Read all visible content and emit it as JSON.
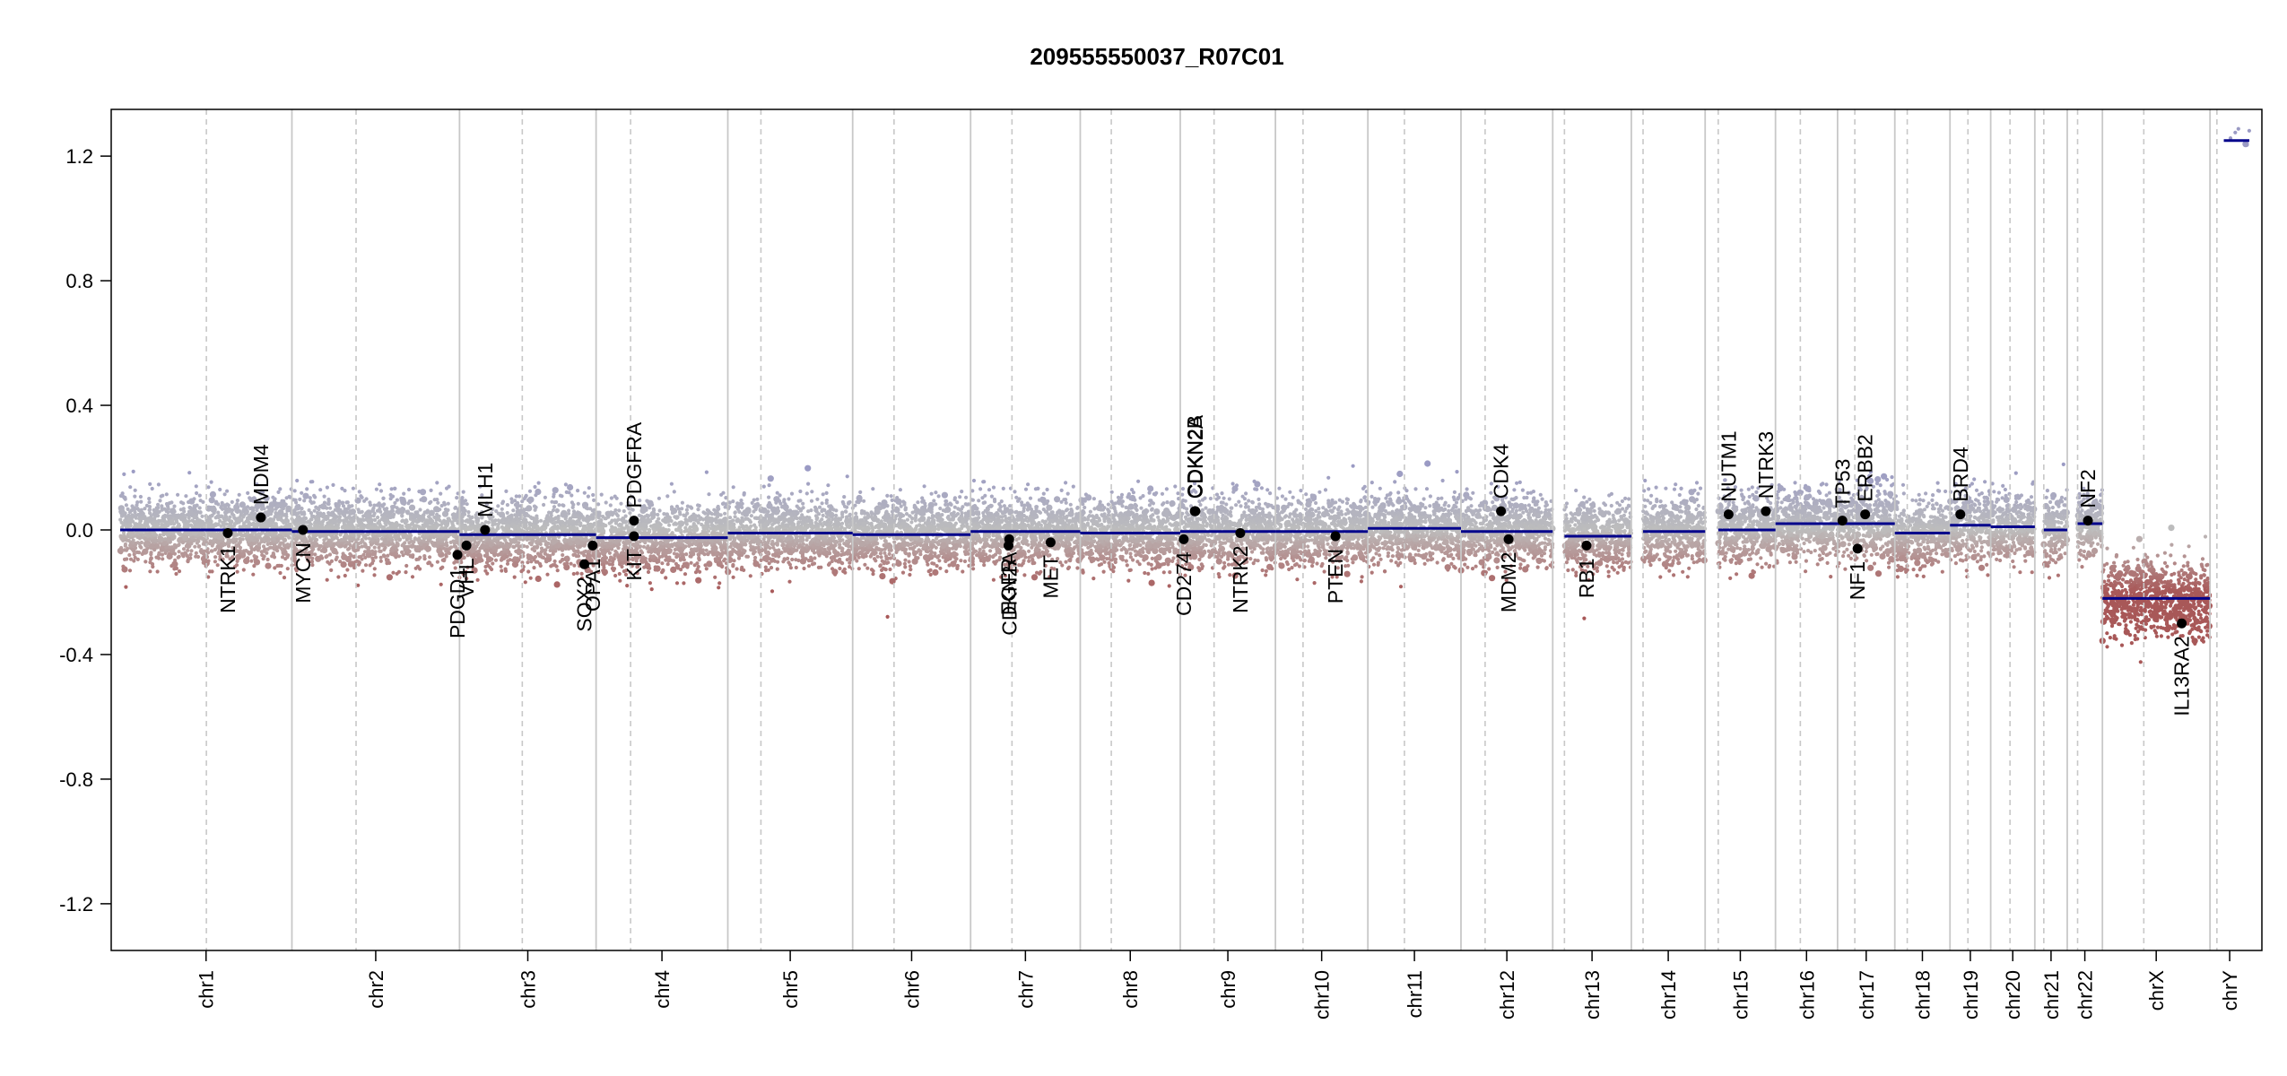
{
  "chart_data": {
    "type": "scatter",
    "title": "209555550037_R07C01",
    "xlabel": "",
    "ylabel": "",
    "ylim": [
      -1.35,
      1.35
    ],
    "yticks": [
      "1.2",
      "0.8",
      "0.4",
      "0.0",
      "-0.4",
      "-0.8",
      "-1.2"
    ],
    "grid": false,
    "colors": {
      "positive": "#9a9ac4",
      "negative": "#a85858",
      "neutral": "#bdbdbd",
      "segment": "#00008b",
      "gene_point": "#000000",
      "boundary": "#c8c8c8",
      "centromere": "#c8c8c8"
    },
    "chromosomes": [
      {
        "name": "chr1",
        "length": 249,
        "centromere": 125,
        "segments": [
          {
            "from": 0,
            "to": 249,
            "value": 0.0
          }
        ]
      },
      {
        "name": "chr2",
        "length": 243,
        "centromere": 93,
        "segments": [
          {
            "from": 0,
            "to": 243,
            "value": -0.005
          }
        ]
      },
      {
        "name": "chr3",
        "length": 198,
        "centromere": 91,
        "segments": [
          {
            "from": 0,
            "to": 198,
            "value": -0.015
          }
        ]
      },
      {
        "name": "chr4",
        "length": 191,
        "centromere": 50,
        "segments": [
          {
            "from": 0,
            "to": 191,
            "value": -0.025
          }
        ]
      },
      {
        "name": "chr5",
        "length": 181,
        "centromere": 48,
        "segments": [
          {
            "from": 0,
            "to": 181,
            "value": -0.01
          }
        ]
      },
      {
        "name": "chr6",
        "length": 171,
        "centromere": 60,
        "segments": [
          {
            "from": 0,
            "to": 171,
            "value": -0.015
          }
        ]
      },
      {
        "name": "chr7",
        "length": 159,
        "centromere": 60,
        "segments": [
          {
            "from": 0,
            "to": 159,
            "value": -0.005
          }
        ]
      },
      {
        "name": "chr8",
        "length": 145,
        "centromere": 45,
        "segments": [
          {
            "from": 0,
            "to": 145,
            "value": -0.01
          }
        ]
      },
      {
        "name": "chr9",
        "length": 138,
        "centromere": 49,
        "segments": [
          {
            "from": 0,
            "to": 138,
            "value": -0.005
          }
        ]
      },
      {
        "name": "chr10",
        "length": 134,
        "centromere": 40,
        "segments": [
          {
            "from": 0,
            "to": 134,
            "value": -0.005
          }
        ]
      },
      {
        "name": "chr11",
        "length": 135,
        "centromere": 53,
        "segments": [
          {
            "from": 0,
            "to": 135,
            "value": 0.005
          }
        ]
      },
      {
        "name": "chr12",
        "length": 133,
        "centromere": 35,
        "segments": [
          {
            "from": 0,
            "to": 133,
            "value": -0.005
          }
        ]
      },
      {
        "name": "chr13",
        "length": 114,
        "centromere": 17,
        "segments": [
          {
            "from": 17,
            "to": 114,
            "value": -0.02
          }
        ]
      },
      {
        "name": "chr14",
        "length": 107,
        "centromere": 17,
        "segments": [
          {
            "from": 17,
            "to": 107,
            "value": -0.005
          }
        ]
      },
      {
        "name": "chr15",
        "length": 102,
        "centromere": 19,
        "segments": [
          {
            "from": 19,
            "to": 102,
            "value": 0.0
          }
        ]
      },
      {
        "name": "chr16",
        "length": 90,
        "centromere": 36,
        "segments": [
          {
            "from": 0,
            "to": 90,
            "value": 0.02
          }
        ]
      },
      {
        "name": "chr17",
        "length": 83,
        "centromere": 25,
        "segments": [
          {
            "from": 0,
            "to": 83,
            "value": 0.02
          }
        ]
      },
      {
        "name": "chr18",
        "length": 80,
        "centromere": 18,
        "segments": [
          {
            "from": 0,
            "to": 80,
            "value": -0.01
          }
        ]
      },
      {
        "name": "chr19",
        "length": 59,
        "centromere": 26,
        "segments": [
          {
            "from": 0,
            "to": 59,
            "value": 0.015
          }
        ]
      },
      {
        "name": "chr20",
        "length": 64,
        "centromere": 28,
        "segments": [
          {
            "from": 0,
            "to": 64,
            "value": 0.01
          }
        ]
      },
      {
        "name": "chr21",
        "length": 47,
        "centromere": 13,
        "segments": [
          {
            "from": 13,
            "to": 47,
            "value": 0.0
          }
        ]
      },
      {
        "name": "chr22",
        "length": 51,
        "centromere": 15,
        "segments": [
          {
            "from": 15,
            "to": 51,
            "value": 0.02
          }
        ]
      },
      {
        "name": "chrX",
        "length": 156,
        "centromere": 60,
        "segments": [
          {
            "from": 0,
            "to": 156,
            "value": -0.22
          }
        ]
      },
      {
        "name": "chrY",
        "length": 57,
        "centromere": 10,
        "segments": [
          {
            "from": 20,
            "to": 57,
            "value": 1.25
          }
        ]
      }
    ],
    "genes": [
      {
        "name": "NTRK1",
        "chr": "chr1",
        "pos": 156,
        "value": -0.01,
        "label": "below"
      },
      {
        "name": "MDM4",
        "chr": "chr1",
        "pos": 204,
        "value": 0.04,
        "label": "above"
      },
      {
        "name": "MYCN",
        "chr": "chr2",
        "pos": 16,
        "value": 0.0,
        "label": "below"
      },
      {
        "name": "PDGD1",
        "chr": "chr2",
        "pos": 240,
        "value": -0.08,
        "label": "below"
      },
      {
        "name": "VHL",
        "chr": "chr3",
        "pos": 10,
        "value": -0.05,
        "label": "below"
      },
      {
        "name": "MLH1",
        "chr": "chr3",
        "pos": 37,
        "value": 0.0,
        "label": "above"
      },
      {
        "name": "SOX2",
        "chr": "chr3",
        "pos": 181,
        "value": -0.11,
        "label": "below"
      },
      {
        "name": "OPA1",
        "chr": "chr3",
        "pos": 193,
        "value": -0.05,
        "label": "below"
      },
      {
        "name": "KIT",
        "chr": "chr4",
        "pos": 55,
        "value": -0.02,
        "label": "below"
      },
      {
        "name": "PDGFRA",
        "chr": "chr4",
        "pos": 55,
        "value": 0.03,
        "label": "above"
      },
      {
        "name": "EGFR",
        "chr": "chr7",
        "pos": 55,
        "value": -0.05,
        "label": "below"
      },
      {
        "name": "CDKN2A",
        "chr": "chr7",
        "pos": 56,
        "value": -0.03,
        "label": "below"
      },
      {
        "name": "MET",
        "chr": "chr7",
        "pos": 116,
        "value": -0.04,
        "label": "below"
      },
      {
        "name": "CD274",
        "chr": "chr9",
        "pos": 5,
        "value": -0.03,
        "label": "below"
      },
      {
        "name": "CDKN2B",
        "chr": "chr9",
        "pos": 21,
        "value": 0.06,
        "label": "above"
      },
      {
        "name": "CDKN2A",
        "chr": "chr9",
        "pos": 22,
        "value": 0.06,
        "label": "above"
      },
      {
        "name": "NTRK2",
        "chr": "chr9",
        "pos": 87,
        "value": -0.01,
        "label": "below"
      },
      {
        "name": "PTEN",
        "chr": "chr10",
        "pos": 87,
        "value": -0.02,
        "label": "below"
      },
      {
        "name": "CDK4",
        "chr": "chr12",
        "pos": 58,
        "value": 0.06,
        "label": "above"
      },
      {
        "name": "MDM2",
        "chr": "chr12",
        "pos": 69,
        "value": -0.03,
        "label": "below"
      },
      {
        "name": "RB1",
        "chr": "chr13",
        "pos": 49,
        "value": -0.05,
        "label": "below"
      },
      {
        "name": "NUTM1",
        "chr": "chr15",
        "pos": 34,
        "value": 0.05,
        "label": "above"
      },
      {
        "name": "NTRK3",
        "chr": "chr15",
        "pos": 88,
        "value": 0.06,
        "label": "above"
      },
      {
        "name": "TP53",
        "chr": "chr17",
        "pos": 7,
        "value": 0.03,
        "label": "above"
      },
      {
        "name": "NF1",
        "chr": "chr17",
        "pos": 29,
        "value": -0.06,
        "label": "below"
      },
      {
        "name": "ERBB2",
        "chr": "chr17",
        "pos": 40,
        "value": 0.05,
        "label": "above"
      },
      {
        "name": "BRD4",
        "chr": "chr19",
        "pos": 15,
        "value": 0.05,
        "label": "above"
      },
      {
        "name": "NF2",
        "chr": "chr22",
        "pos": 30,
        "value": 0.03,
        "label": "above"
      },
      {
        "name": "IL13RA2",
        "chr": "chrX",
        "pos": 115,
        "value": -0.3,
        "label": "below"
      }
    ]
  }
}
